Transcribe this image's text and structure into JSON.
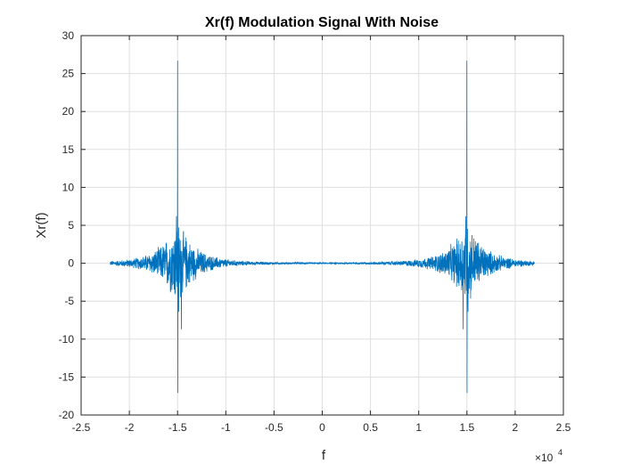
{
  "chart_data": {
    "type": "line",
    "title": "Xr(f) Modulation Signal With Noise",
    "xlabel": "f",
    "ylabel": "Xr(f)",
    "x_exponent_label": "×10",
    "x_exponent_power": "4",
    "xlim": [
      -2.5,
      2.5
    ],
    "ylim": [
      -20,
      30
    ],
    "grid": true,
    "xticks": [
      -2.5,
      -2,
      -1.5,
      -1,
      -0.5,
      0,
      0.5,
      1,
      1.5,
      2,
      2.5
    ],
    "xtick_labels": [
      "-2.5",
      "-2",
      "-1.5",
      "-1",
      "-0.5",
      "0",
      "0.5",
      "1",
      "1.5",
      "2",
      "2.5"
    ],
    "yticks": [
      -20,
      -15,
      -10,
      -5,
      0,
      5,
      10,
      15,
      20,
      25,
      30
    ],
    "ytick_labels": [
      "-20",
      "-15",
      "-10",
      "-5",
      "0",
      "5",
      "10",
      "15",
      "20",
      "25",
      "30"
    ],
    "line_color": "#0072BD",
    "series": [
      {
        "x_range": [
          -2.2,
          2.2
        ],
        "band_centers": [
          -1.5,
          1.5
        ],
        "peak_max": 26.7,
        "peak_min": -17.1,
        "secondary_min": -8.7,
        "envelope_amplitude_near_center": 5.5
      }
    ]
  }
}
